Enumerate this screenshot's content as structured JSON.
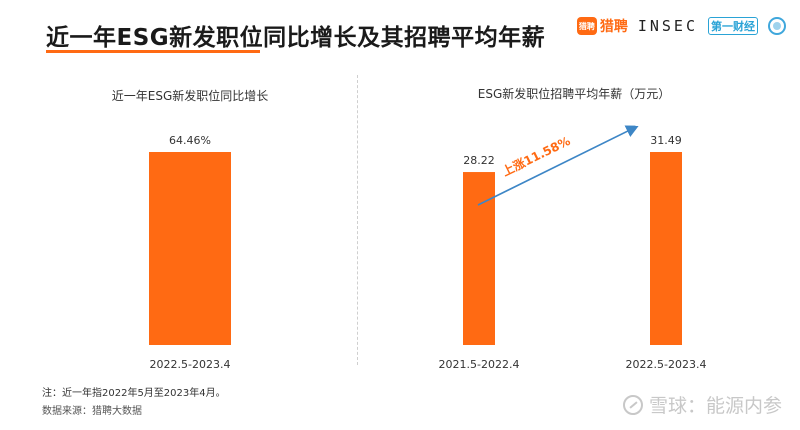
{
  "page": {
    "title": "近一年ESG新发职位同比增长及其招聘平均年薪",
    "logos": {
      "liepin_box": "猎聘",
      "liepin": "猎聘",
      "insec": "INSEC",
      "dycj": "第一财经"
    },
    "note": "注：近一年指2022年5月至2023年4月。",
    "source": "数据来源：猎聘大数据",
    "watermark": "雪球：能源内参"
  },
  "colors": {
    "bar": "#ff6a13",
    "arrow": "#3d86c6",
    "accent": "#ff6a13"
  },
  "chart_data": [
    {
      "type": "bar",
      "title": "近一年ESG新发职位同比增长",
      "categories": [
        "2022.5-2023.4"
      ],
      "values": [
        64.46
      ],
      "value_labels": [
        "64.46%"
      ],
      "unit": "%",
      "ylim": [
        0,
        64.46
      ]
    },
    {
      "type": "bar",
      "title": "ESG新发职位招聘平均年薪（万元）",
      "categories": [
        "2021.5-2022.4",
        "2022.5-2023.4"
      ],
      "values": [
        28.22,
        31.49
      ],
      "value_labels": [
        "28.22",
        "31.49"
      ],
      "annotation": "上涨11.58%",
      "ylim": [
        0,
        31.49
      ]
    }
  ]
}
